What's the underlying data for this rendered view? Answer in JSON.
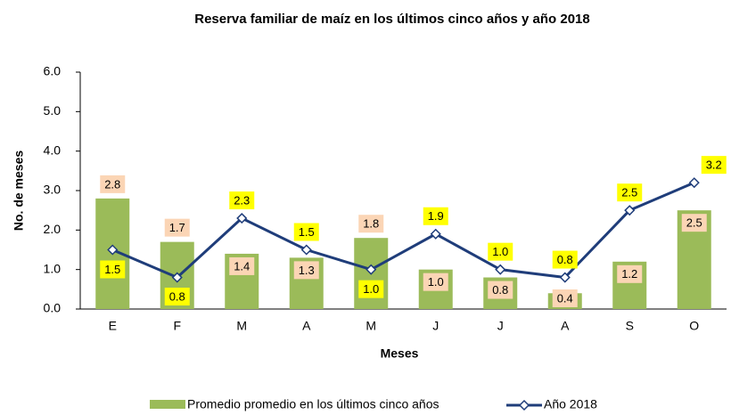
{
  "chart_data": {
    "type": "bar_line",
    "title": "Reserva familiar de maíz en los  últimos cinco años y año 2018",
    "x_label": "Meses",
    "y_label": "No. de meses",
    "categories": [
      "E",
      "F",
      "M",
      "A",
      "M",
      "J",
      "J",
      "A",
      "S",
      "O"
    ],
    "series": [
      {
        "name": "Promedio promedio en los  últimos cinco años",
        "color": "#9bbb59",
        "kind": "bar",
        "values": [
          2.8,
          1.7,
          1.4,
          1.3,
          1.8,
          1.0,
          0.8,
          0.4,
          1.2,
          2.5
        ],
        "value_labels": [
          "2.8",
          "1.7",
          "1.4",
          "1.3",
          "1.8",
          "1.0",
          "0.8",
          "0.4",
          "1.2",
          "2.5"
        ],
        "label_color": "#fbd5b5"
      },
      {
        "name": "Año 2018",
        "color": "#1f3d7a",
        "kind": "line",
        "values": [
          1.5,
          0.8,
          2.3,
          1.5,
          1.0,
          1.9,
          1.0,
          0.8,
          2.5,
          3.2
        ],
        "value_labels": [
          "1.5",
          "0.8",
          "2.3",
          "1.5",
          "1.0",
          "1.9",
          "1.0",
          "0.8",
          "2.5",
          "3.2"
        ],
        "label_color": "#ffff00"
      }
    ],
    "ylim": [
      0,
      6
    ],
    "yticks": [
      {
        "value": 0,
        "label": "0.0"
      },
      {
        "value": 1,
        "label": "1.0"
      },
      {
        "value": 2,
        "label": "2.0"
      },
      {
        "value": 3,
        "label": "3.0"
      },
      {
        "value": 4,
        "label": "4.0"
      },
      {
        "value": 5,
        "label": "5.0"
      },
      {
        "value": 6,
        "label": "6.0"
      }
    ]
  }
}
